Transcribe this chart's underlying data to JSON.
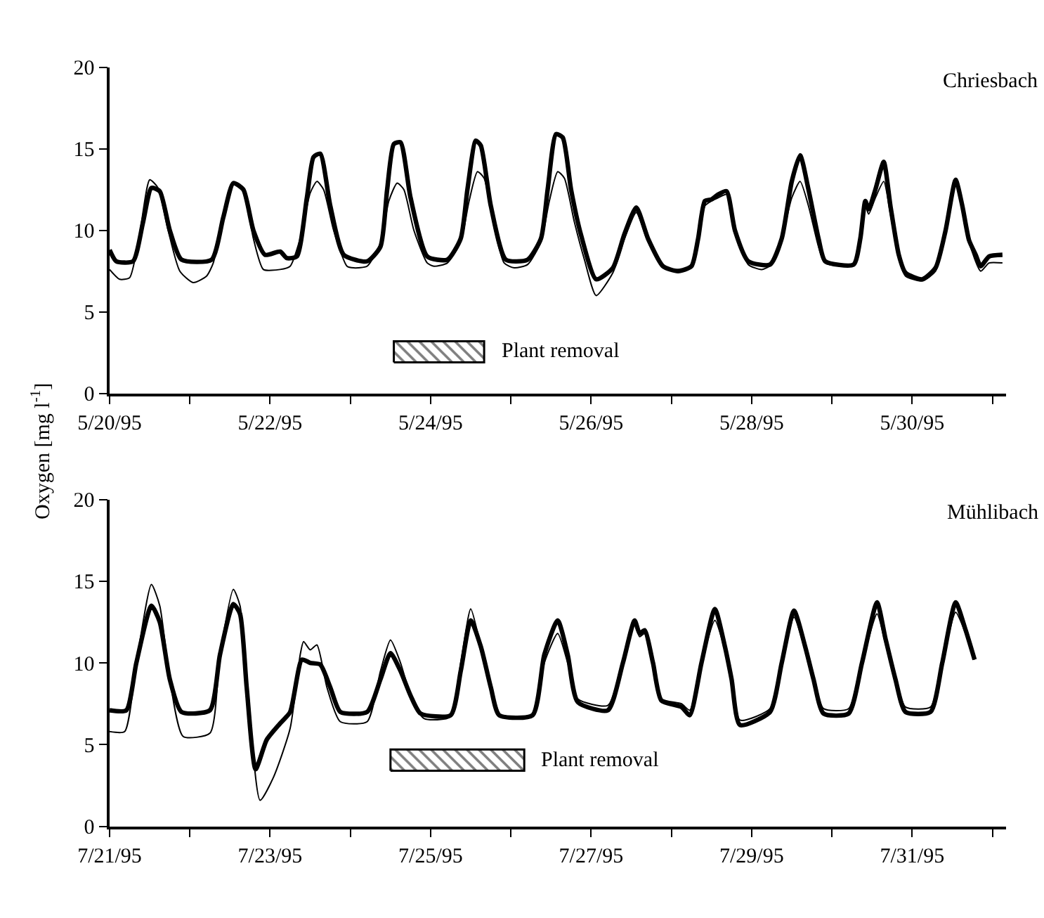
{
  "chart_data": [
    {
      "type": "line",
      "title": "Chriesbach",
      "ylabel": "Oxygen [mg l$^{-1}$]",
      "marker": "none",
      "line_style": "solid",
      "xlim": [
        "1995-05-20T00:00",
        "1995-05-31T04:00"
      ],
      "xticks": [
        {
          "value": "1995-05-20",
          "label": "5/20/95"
        },
        {
          "value": "1995-05-21",
          "label": null
        },
        {
          "value": "1995-05-22",
          "label": "5/22/95"
        },
        {
          "value": "1995-05-23",
          "label": null
        },
        {
          "value": "1995-05-24",
          "label": "5/24/95"
        },
        {
          "value": "1995-05-25",
          "label": null
        },
        {
          "value": "1995-05-26",
          "label": "5/26/95"
        },
        {
          "value": "1995-05-27",
          "label": null
        },
        {
          "value": "1995-05-28",
          "label": "5/28/95"
        },
        {
          "value": "1995-05-29",
          "label": null
        },
        {
          "value": "1995-05-30",
          "label": "5/30/95"
        },
        {
          "value": "1995-05-31",
          "label": null
        }
      ],
      "ylim": [
        0,
        20
      ],
      "yticks": [
        0,
        5,
        10,
        15,
        20
      ],
      "bands": [
        {
          "axis": "x",
          "from": "1995-05-23T13:00",
          "to": "1995-05-24T16:00",
          "label": "Plant removal"
        }
      ],
      "series": [
        {
          "color": "#000000",
          "x": [
            "1995-05-20T00:00",
            "1995-05-20T02:00",
            "1995-05-20T07:00",
            "1995-05-20T10:00",
            "1995-05-20T12:30",
            "1995-05-20T15:00",
            "1995-05-20T18:00",
            "1995-05-20T21:30",
            "1995-05-21T06:30",
            "1995-05-21T10:00",
            "1995-05-21T13:00",
            "1995-05-21T16:00",
            "1995-05-21T19:00",
            "1995-05-21T22:30",
            "1995-05-22T03:00",
            "1995-05-22T05:00",
            "1995-05-22T08:00",
            "1995-05-22T11:00",
            "1995-05-22T13:00",
            "1995-05-22T15:00",
            "1995-05-22T18:00",
            "1995-05-22T22:00",
            "1995-05-23T05:00",
            "1995-05-23T09:00",
            "1995-05-23T11:00",
            "1995-05-23T13:00",
            "1995-05-23T15:00",
            "1995-05-23T18:00",
            "1995-05-23T23:00",
            "1995-05-24T05:00",
            "1995-05-24T09:00",
            "1995-05-24T11:00",
            "1995-05-24T13:30",
            "1995-05-24T15:00",
            "1995-05-24T18:00",
            "1995-05-24T22:30",
            "1995-05-25T05:00",
            "1995-05-25T09:00",
            "1995-05-25T11:00",
            "1995-05-25T13:30",
            "1995-05-25T15:30",
            "1995-05-25T18:00",
            "1995-05-25T21:00",
            "1995-05-26T01:30",
            "1995-05-26T06:30",
            "1995-05-26T10:00",
            "1995-05-26T13:30",
            "1995-05-26T17:00",
            "1995-05-26T21:30",
            "1995-05-27T02:00",
            "1995-05-27T06:00",
            "1995-05-27T08:00",
            "1995-05-27T10:00",
            "1995-05-27T12:00",
            "1995-05-27T14:00",
            "1995-05-27T16:30",
            "1995-05-27T19:00",
            "1995-05-27T23:00",
            "1995-05-28T05:30",
            "1995-05-28T09:00",
            "1995-05-28T12:00",
            "1995-05-28T14:30",
            "1995-05-28T17:00",
            "1995-05-28T20:00",
            "1995-05-28T22:00",
            "1995-05-29T06:30",
            "1995-05-29T08:30",
            "1995-05-29T10:00",
            "1995-05-29T11:00",
            "1995-05-29T13:00",
            "1995-05-29T15:30",
            "1995-05-29T17:30",
            "1995-05-29T20:00",
            "1995-05-29T22:00",
            "1995-05-30T03:00",
            "1995-05-30T07:00",
            "1995-05-30T10:00",
            "1995-05-30T13:00",
            "1995-05-30T15:00",
            "1995-05-30T17:00",
            "1995-05-30T19:00",
            "1995-05-30T20:30",
            "1995-05-30T23:00",
            "1995-05-31T03:00"
          ],
          "values": [
            8.8,
            8.1,
            8.1,
            10.5,
            12.6,
            12.4,
            10.0,
            8.2,
            8.2,
            10.8,
            12.9,
            12.5,
            10.0,
            8.5,
            8.7,
            8.3,
            8.4,
            12.0,
            14.5,
            14.7,
            11.5,
            8.5,
            8.1,
            9.0,
            12.5,
            15.3,
            15.4,
            12.0,
            8.4,
            8.2,
            9.5,
            12.5,
            15.5,
            15.2,
            11.5,
            8.2,
            8.2,
            9.5,
            12.5,
            15.9,
            15.7,
            12.5,
            9.7,
            7.0,
            7.7,
            9.8,
            11.4,
            9.5,
            7.8,
            7.5,
            7.8,
            9.5,
            11.8,
            11.9,
            12.2,
            12.4,
            10.0,
            8.1,
            7.9,
            9.5,
            13.0,
            14.6,
            12.5,
            9.5,
            8.1,
            7.9,
            9.5,
            11.8,
            11.3,
            12.5,
            14.2,
            11.5,
            8.5,
            7.4,
            7.0,
            7.7,
            10.0,
            13.1,
            11.5,
            9.4,
            8.5,
            7.8,
            8.4,
            8.5
          ]
        },
        {
          "color": "#000000",
          "x": [
            "1995-05-20T00:00",
            "1995-05-20T03:00",
            "1995-05-20T06:00",
            "1995-05-20T09:00",
            "1995-05-20T12:00",
            "1995-05-20T14:30",
            "1995-05-20T17:30",
            "1995-05-20T21:00",
            "1995-05-21T01:00",
            "1995-05-21T05:00",
            "1995-05-21T07:00",
            "1995-05-21T10:00",
            "1995-05-21T13:00",
            "1995-05-21T16:00",
            "1995-05-21T19:00",
            "1995-05-21T22:00",
            "1995-05-22T03:00",
            "1995-05-22T06:00",
            "1995-05-22T09:00",
            "1995-05-22T12:00",
            "1995-05-22T14:00",
            "1995-05-22T16:00",
            "1995-05-22T19:00",
            "1995-05-22T23:00",
            "1995-05-23T01:00",
            "1995-05-23T05:00",
            "1995-05-23T09:00",
            "1995-05-23T11:30",
            "1995-05-23T14:00",
            "1995-05-23T16:00",
            "1995-05-23T19:00",
            "1995-05-23T23:00",
            "1995-05-24T01:00",
            "1995-05-24T05:00",
            "1995-05-24T09:00",
            "1995-05-24T11:30",
            "1995-05-24T14:00",
            "1995-05-24T16:00",
            "1995-05-24T19:00",
            "1995-05-24T22:00",
            "1995-05-25T01:00",
            "1995-05-25T05:00",
            "1995-05-25T09:00",
            "1995-05-25T11:30",
            "1995-05-25T14:00",
            "1995-05-25T16:00",
            "1995-05-25T19:00",
            "1995-05-25T22:00",
            "1995-05-26T01:30",
            "1995-05-26T06:30",
            "1995-05-26T10:00",
            "1995-05-26T13:30",
            "1995-05-26T17:00",
            "1995-05-26T21:30",
            "1995-05-27T02:00",
            "1995-05-27T06:00",
            "1995-05-27T10:00",
            "1995-05-27T12:00",
            "1995-05-27T14:00",
            "1995-05-27T16:30",
            "1995-05-27T19:00",
            "1995-05-27T23:00",
            "1995-05-28T03:00",
            "1995-05-28T06:00",
            "1995-05-28T09:00",
            "1995-05-28T12:00",
            "1995-05-28T14:30",
            "1995-05-28T17:00",
            "1995-05-28T20:00",
            "1995-05-28T22:00",
            "1995-05-29T06:30",
            "1995-05-29T10:00",
            "1995-05-29T11:00",
            "1995-05-29T13:00",
            "1995-05-29T15:30",
            "1995-05-29T17:30",
            "1995-05-29T20:00",
            "1995-05-29T22:00",
            "1995-05-30T03:00",
            "1995-05-30T07:00",
            "1995-05-30T10:00",
            "1995-05-30T13:00",
            "1995-05-30T15:00",
            "1995-05-30T17:00",
            "1995-05-30T20:30",
            "1995-05-30T23:00",
            "1995-05-31T03:00"
          ],
          "values": [
            7.6,
            7.0,
            7.1,
            9.8,
            13.1,
            12.6,
            10.0,
            7.5,
            6.8,
            7.2,
            8.0,
            10.8,
            12.9,
            12.4,
            9.5,
            7.6,
            7.6,
            7.8,
            9.5,
            12.3,
            13.0,
            12.5,
            10.0,
            7.8,
            7.7,
            7.8,
            9.2,
            11.8,
            12.9,
            12.5,
            10.0,
            8.0,
            7.8,
            8.0,
            9.3,
            11.8,
            13.6,
            13.2,
            10.2,
            8.0,
            7.7,
            7.9,
            9.3,
            11.8,
            13.6,
            13.2,
            10.5,
            8.2,
            6.0,
            7.4,
            9.5,
            11.1,
            9.3,
            7.7,
            7.6,
            7.7,
            11.5,
            11.8,
            12.0,
            12.2,
            10.0,
            7.9,
            7.6,
            7.9,
            9.5,
            12.0,
            13.0,
            11.5,
            9.0,
            8.0,
            7.9,
            11.5,
            11.0,
            12.0,
            13.0,
            11.0,
            8.3,
            7.2,
            6.9,
            7.5,
            10.0,
            13.0,
            11.4,
            9.3,
            7.5,
            8.0,
            8.0
          ]
        }
      ]
    },
    {
      "type": "line",
      "title": "Mühlibach",
      "marker": "none",
      "line_style": "solid",
      "xlim": [
        "1995-07-21T00:00",
        "1995-08-01T04:00"
      ],
      "xticks": [
        {
          "value": "1995-07-21",
          "label": "7/21/95"
        },
        {
          "value": "1995-07-22",
          "label": null
        },
        {
          "value": "1995-07-23",
          "label": "7/23/95"
        },
        {
          "value": "1995-07-24",
          "label": null
        },
        {
          "value": "1995-07-25",
          "label": "7/25/95"
        },
        {
          "value": "1995-07-26",
          "label": null
        },
        {
          "value": "1995-07-27",
          "label": "7/27/95"
        },
        {
          "value": "1995-07-28",
          "label": null
        },
        {
          "value": "1995-07-29",
          "label": "7/29/95"
        },
        {
          "value": "1995-07-30",
          "label": null
        },
        {
          "value": "1995-07-31",
          "label": "7/31/95"
        },
        {
          "value": "1995-08-01",
          "label": null
        }
      ],
      "ylim": [
        0,
        20
      ],
      "yticks": [
        0,
        5,
        10,
        15,
        20
      ],
      "bands": [
        {
          "axis": "x",
          "from": "1995-07-24T12:00",
          "to": "1995-07-26T04:00",
          "label": "Plant removal"
        }
      ],
      "series": [
        {
          "color": "#000000",
          "x": [
            "1995-07-21T00:00",
            "1995-07-21T05:00",
            "1995-07-21T08:00",
            "1995-07-21T12:30",
            "1995-07-21T15:00",
            "1995-07-21T18:00",
            "1995-07-21T21:30",
            "1995-07-22T06:00",
            "1995-07-22T09:00",
            "1995-07-22T13:00",
            "1995-07-22T15:00",
            "1995-07-22T17:00",
            "1995-07-22T19:40",
            "1995-07-22T23:00",
            "1995-07-23T03:00",
            "1995-07-23T06:00",
            "1995-07-23T09:30",
            "1995-07-23T12:00",
            "1995-07-23T15:00",
            "1995-07-23T18:00",
            "1995-07-23T21:00",
            "1995-07-24T05:00",
            "1995-07-24T09:00",
            "1995-07-24T12:00",
            "1995-07-24T15:00",
            "1995-07-24T18:00",
            "1995-07-24T21:00",
            "1995-07-25T06:00",
            "1995-07-25T09:00",
            "1995-07-25T12:00",
            "1995-07-25T15:00",
            "1995-07-25T18:00",
            "1995-07-25T20:30",
            "1995-07-26T06:30",
            "1995-07-26T10:00",
            "1995-07-26T14:00",
            "1995-07-26T17:00",
            "1995-07-26T20:00",
            "1995-07-27T05:00",
            "1995-07-27T09:30",
            "1995-07-27T13:00",
            "1995-07-27T14:30",
            "1995-07-27T16:00",
            "1995-07-27T18:30",
            "1995-07-27T21:00",
            "1995-07-28T03:00",
            "1995-07-28T05:30",
            "1995-07-28T09:00",
            "1995-07-28T13:00",
            "1995-07-28T16:00",
            "1995-07-28T18:00",
            "1995-07-28T20:30",
            "1995-07-29T05:30",
            "1995-07-29T09:00",
            "1995-07-29T12:40",
            "1995-07-29T16:00",
            "1995-07-29T18:30",
            "1995-07-29T21:30",
            "1995-07-30T05:00",
            "1995-07-30T09:00",
            "1995-07-30T13:30",
            "1995-07-30T16:00",
            "1995-07-30T19:00",
            "1995-07-30T22:00",
            "1995-07-31T05:30",
            "1995-07-31T09:00",
            "1995-07-31T13:00",
            "1995-07-31T16:00",
            "1995-07-31T18:40"
          ],
          "values": [
            7.1,
            7.1,
            10.0,
            13.5,
            12.5,
            9.0,
            7.0,
            7.1,
            10.5,
            13.6,
            13.0,
            8.5,
            3.5,
            5.3,
            6.3,
            7.0,
            10.2,
            10.0,
            9.9,
            8.5,
            7.0,
            7.0,
            9.0,
            10.6,
            9.5,
            8.0,
            6.9,
            6.8,
            9.5,
            12.6,
            11.0,
            8.5,
            6.8,
            6.8,
            10.5,
            12.6,
            10.5,
            7.6,
            7.1,
            10.0,
            12.6,
            11.8,
            12.0,
            10.0,
            7.7,
            7.3,
            6.8,
            10.0,
            13.3,
            11.0,
            9.0,
            6.2,
            7.0,
            10.0,
            13.2,
            11.0,
            9.0,
            6.9,
            6.9,
            10.0,
            13.7,
            11.5,
            9.0,
            7.0,
            7.0,
            10.0,
            13.7,
            12.0,
            10.2
          ]
        },
        {
          "color": "#000000",
          "x": [
            "1995-07-21T00:00",
            "1995-07-21T04:30",
            "1995-07-21T08:00",
            "1995-07-21T12:30",
            "1995-07-21T15:00",
            "1995-07-21T18:00",
            "1995-07-21T22:00",
            "1995-07-22T06:00",
            "1995-07-22T09:00",
            "1995-07-22T13:00",
            "1995-07-22T15:00",
            "1995-07-22T17:30",
            "1995-07-22T21:00",
            "1995-07-23T01:00",
            "1995-07-23T06:00",
            "1995-07-23T09:00",
            "1995-07-23T10:00",
            "1995-07-23T12:00",
            "1995-07-23T14:00",
            "1995-07-23T17:00",
            "1995-07-23T21:00",
            "1995-07-24T05:00",
            "1995-07-24T09:00",
            "1995-07-24T12:00",
            "1995-07-24T15:00",
            "1995-07-24T18:00",
            "1995-07-24T22:00",
            "1995-07-25T06:00",
            "1995-07-25T09:00",
            "1995-07-25T12:00",
            "1995-07-25T15:00",
            "1995-07-25T18:00",
            "1995-07-25T21:00",
            "1995-07-26T06:30",
            "1995-07-26T10:00",
            "1995-07-26T14:00",
            "1995-07-26T17:00",
            "1995-07-26T20:00",
            "1995-07-27T05:00",
            "1995-07-27T09:30",
            "1995-07-27T13:00",
            "1995-07-27T14:30",
            "1995-07-27T16:00",
            "1995-07-27T18:30",
            "1995-07-27T21:00",
            "1995-07-28T03:00",
            "1995-07-28T05:30",
            "1995-07-28T09:00",
            "1995-07-28T13:00",
            "1995-07-28T16:00",
            "1995-07-28T18:00",
            "1995-07-28T20:30",
            "1995-07-29T05:30",
            "1995-07-29T09:00",
            "1995-07-29T12:40",
            "1995-07-29T16:00",
            "1995-07-29T18:30",
            "1995-07-29T21:30",
            "1995-07-30T05:00",
            "1995-07-30T09:00",
            "1995-07-30T13:30",
            "1995-07-30T16:00",
            "1995-07-30T19:00",
            "1995-07-30T22:00",
            "1995-07-31T05:30",
            "1995-07-31T09:00",
            "1995-07-31T13:00",
            "1995-07-31T16:00",
            "1995-07-31T18:40"
          ],
          "values": [
            5.8,
            5.8,
            10.0,
            14.8,
            13.5,
            9.0,
            5.5,
            5.7,
            10.5,
            14.5,
            13.5,
            8.0,
            1.6,
            3.0,
            6.0,
            10.5,
            11.3,
            10.8,
            11.1,
            8.5,
            6.4,
            6.4,
            9.5,
            11.4,
            10.0,
            8.0,
            6.6,
            6.7,
            10.0,
            13.3,
            11.0,
            8.5,
            6.8,
            6.8,
            10.0,
            11.8,
            10.0,
            7.8,
            7.4,
            10.0,
            12.4,
            11.6,
            11.8,
            10.0,
            7.8,
            7.5,
            7.1,
            10.0,
            12.6,
            10.8,
            9.0,
            6.5,
            7.2,
            10.0,
            12.8,
            10.8,
            9.0,
            7.2,
            7.2,
            10.0,
            13.0,
            11.2,
            9.0,
            7.3,
            7.3,
            10.0,
            13.1,
            11.8,
            10.2
          ]
        }
      ]
    }
  ]
}
